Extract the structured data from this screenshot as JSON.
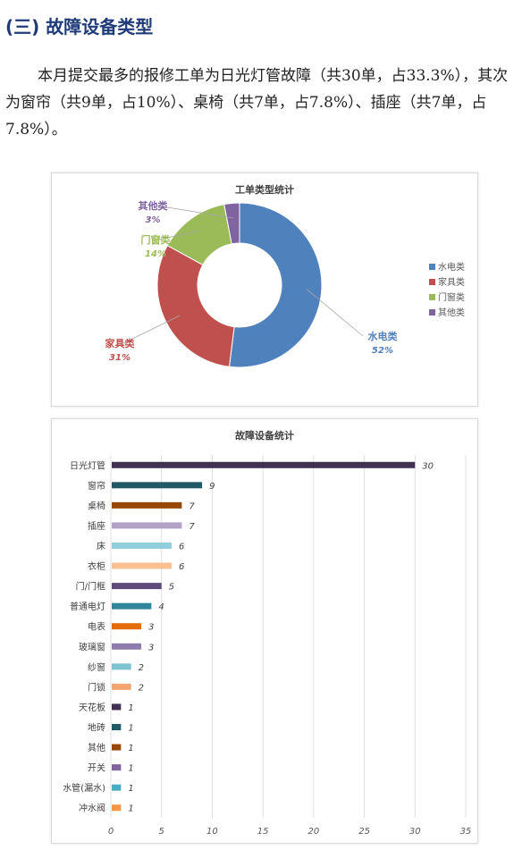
{
  "section": {
    "heading": "(三) 故障设备类型"
  },
  "paragraph": {
    "text": "本月提交最多的报修工单为日光灯管故障（共30单，占33.3%），其次为窗帘（共9单，占10%）、桌椅（共7单，占7.8%）、插座（共7单，占7.8%）。"
  },
  "chart_data": [
    {
      "type": "pie",
      "title": "工单类型统计",
      "donut": true,
      "labels": [
        "水电类",
        "家具类",
        "门窗类",
        "其他类"
      ],
      "values": [
        52,
        31,
        14,
        3
      ],
      "value_labels": [
        "52%",
        "31%",
        "14%",
        "3%"
      ],
      "colors": [
        "#4f81bd",
        "#c0504d",
        "#9bbb59",
        "#8064a2"
      ],
      "legend": "right"
    },
    {
      "type": "bar",
      "orientation": "horizontal",
      "title": "故障设备统计",
      "categories": [
        "日光灯管",
        "窗帘",
        "桌椅",
        "插座",
        "床",
        "衣柜",
        "门/门框",
        "普通电灯",
        "电表",
        "玻璃窗",
        "纱窗",
        "门锁",
        "天花板",
        "地砖",
        "其他",
        "开关",
        "水管(漏水)",
        "冲水阀"
      ],
      "values": [
        30,
        9,
        7,
        7,
        6,
        6,
        5,
        4,
        3,
        3,
        2,
        2,
        1,
        1,
        1,
        1,
        1,
        1
      ],
      "colors": [
        "#403151",
        "#215968",
        "#974706",
        "#b3a2c7",
        "#92cddc",
        "#fac090",
        "#604a7b",
        "#31859c",
        "#e46c0a",
        "#8e7cae",
        "#7fc3d3",
        "#f2a66e",
        "#403151",
        "#215968",
        "#974706",
        "#8064a2",
        "#4bacc6",
        "#f79646"
      ],
      "xlim": [
        0,
        35
      ],
      "xticks": [
        0,
        5,
        10,
        15,
        20,
        25,
        30,
        35
      ]
    }
  ]
}
